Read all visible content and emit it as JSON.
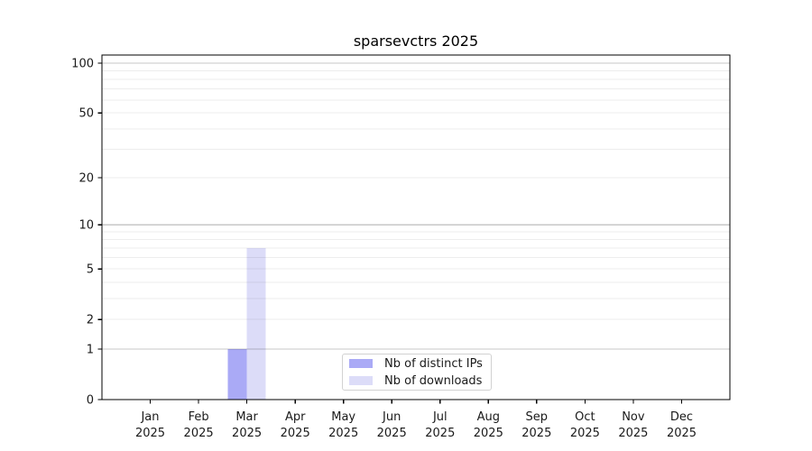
{
  "title": "sparsevctrs 2025",
  "chart_data": {
    "type": "bar",
    "title": "sparsevctrs 2025",
    "xlabel": "",
    "ylabel": "",
    "categories": [
      "Jan",
      "Feb",
      "Mar",
      "Apr",
      "May",
      "Jun",
      "Jul",
      "Aug",
      "Sep",
      "Oct",
      "Nov",
      "Dec"
    ],
    "x_axis": {
      "year_label": "2025"
    },
    "series": [
      {
        "name": "Nb of distinct IPs",
        "color": "#aaaaf6",
        "values": [
          0,
          0,
          1,
          0,
          0,
          0,
          0,
          0,
          0,
          0,
          0,
          0
        ]
      },
      {
        "name": "Nb of downloads",
        "color": "#dcdcf8",
        "values": [
          0,
          0,
          7,
          0,
          0,
          0,
          0,
          0,
          0,
          0,
          0,
          0
        ]
      }
    ],
    "y_axis": {
      "scale": "log10(1+x)",
      "range": [
        0,
        112
      ],
      "tick_values": [
        0,
        1,
        2,
        5,
        10,
        20,
        50,
        100
      ],
      "major_gridlines": [
        1,
        10,
        100
      ],
      "minor_gridlines": [
        2,
        3,
        4,
        5,
        6,
        7,
        8,
        9,
        20,
        30,
        40,
        50,
        60,
        70,
        80,
        90
      ]
    },
    "grid": true,
    "legend": {
      "position": "bottom-center-inside",
      "entries": [
        "Nb of distinct IPs",
        "Nb of downloads"
      ]
    }
  }
}
